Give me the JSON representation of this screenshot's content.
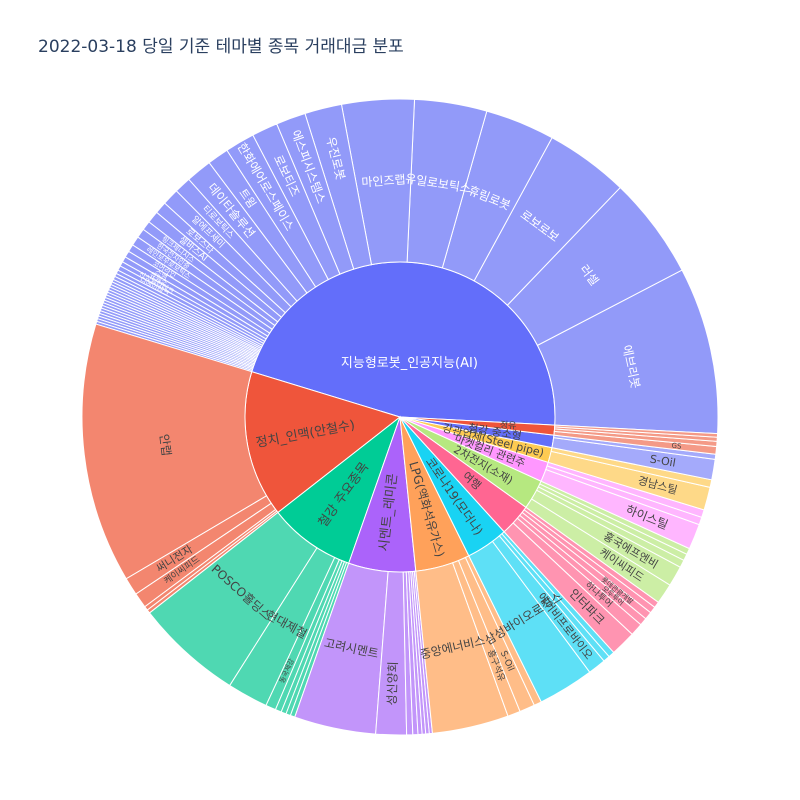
{
  "chart_data": {
    "type": "sunburst",
    "title": "2022-03-18 당일 기준 테마별 종목 거래대금 분포",
    "themes": [
      {
        "name": "지능형로봇_인공지능(AI)",
        "color": "#636efa",
        "child_color": "#929af9",
        "value": 178,
        "children": [
          {
            "name": "에브리봇",
            "value": 18
          },
          {
            "name": "러셀",
            "value": 11
          },
          {
            "name": "로보로보",
            "value": 9
          },
          {
            "name": "휴림로봇",
            "value": 7.5
          },
          {
            "name": "유일로보틱스",
            "value": 7.8
          },
          {
            "name": "마인즈랩",
            "value": 7.8
          },
          {
            "name": "우진로봇",
            "value": 4
          },
          {
            "name": "에스피시스템스",
            "value": 3.2
          },
          {
            "name": "로보티즈",
            "value": 2.8
          },
          {
            "name": "한화에어로스페이스",
            "value": 3.2
          },
          {
            "name": "트윔",
            "value": 2.3
          },
          {
            "name": "데이타솔루션",
            "value": 2.8
          },
          {
            "name": "티로보틱스",
            "value": 1.8
          },
          {
            "name": "알에프세미",
            "value": 1.8
          },
          {
            "name": "로보스타",
            "value": 1.3
          },
          {
            "name": "셀바스AI",
            "value": 1.3
          },
          {
            "name": "링크제니시스",
            "value": 1
          },
          {
            "name": "한국전자인증",
            "value": 1
          },
          {
            "name": "레인보우로보틱스",
            "value": 1
          },
          {
            "name": "코어라인",
            "value": 0.8
          },
          {
            "name": "스맥",
            "value": 0.7
          },
          {
            "name": "큐렉소",
            "value": 0.6
          },
          {
            "name": "신성델타테크",
            "value": 0.5
          },
          {
            "name": "디에이테크",
            "value": 0.5
          },
          {
            "name": "코난테크",
            "value": 0.4
          },
          {
            "name": "",
            "value": 0.35
          },
          {
            "name": "",
            "value": 0.35
          },
          {
            "name": "",
            "value": 0.3
          },
          {
            "name": "",
            "value": 0.3
          },
          {
            "name": "",
            "value": 0.3
          },
          {
            "name": "",
            "value": 0.3
          },
          {
            "name": "",
            "value": 0.3
          },
          {
            "name": "",
            "value": 0.3
          },
          {
            "name": "",
            "value": 0.3
          },
          {
            "name": "",
            "value": 0.3
          },
          {
            "name": "",
            "value": 0.3
          },
          {
            "name": "",
            "value": 0.3
          },
          {
            "name": "",
            "value": 0.3
          },
          {
            "name": "",
            "value": 0.3
          },
          {
            "name": "",
            "value": 0.3
          },
          {
            "name": "",
            "value": 0.3
          },
          {
            "name": "",
            "value": 0.3
          },
          {
            "name": "",
            "value": 0.3
          },
          {
            "name": "",
            "value": 0.3
          }
        ]
      },
      {
        "name": "정치_인맥(안철수)",
        "color": "#ef553b",
        "child_color": "#f3866f",
        "value": 59,
        "children": [
          {
            "name": "안랩",
            "value": 51
          },
          {
            "name": "써니전자",
            "value": 3.5
          },
          {
            "name": "케이씨피드",
            "value": 3
          },
          {
            "name": "",
            "value": 0.8
          },
          {
            "name": "",
            "value": 0.7
          }
        ]
      },
      {
        "name": "철강 주요종목",
        "color": "#00cc96",
        "child_color": "#4fd8b2",
        "value": 35,
        "children": [
          {
            "name": "POSCO홀딩스",
            "value": 21
          },
          {
            "name": "현대제철",
            "value": 8
          },
          {
            "name": "동국제강",
            "value": 2
          },
          {
            "name": "",
            "value": 1.2
          },
          {
            "name": "",
            "value": 1
          },
          {
            "name": "",
            "value": 0.9
          },
          {
            "name": "",
            "value": 0.9
          }
        ]
      },
      {
        "name": "시멘트_레미콘",
        "color": "#ab63fa",
        "child_color": "#c295fa",
        "value": 27,
        "children": [
          {
            "name": "고려시멘트",
            "value": 16
          },
          {
            "name": "성신양회",
            "value": 6
          },
          {
            "name": "",
            "value": 1.2
          },
          {
            "name": "",
            "value": 1
          },
          {
            "name": "",
            "value": 0.8
          },
          {
            "name": "",
            "value": 0.7
          },
          {
            "name": "",
            "value": 0.7
          },
          {
            "name": "",
            "value": 0.6
          }
        ]
      },
      {
        "name": "LPG(액화석유가스)",
        "color": "#ffa15a",
        "child_color": "#ffbd88",
        "value": 22,
        "children": [
          {
            "name": "중앙에너비스",
            "value": 15
          },
          {
            "name": "흥구석유",
            "value": 2.5
          },
          {
            "name": "S-Oil",
            "value": 3
          },
          {
            "name": "",
            "value": 1.5
          }
        ]
      },
      {
        "name": "코로나19(모더나)",
        "color": "#19d3f3",
        "child_color": "#5ee0f6",
        "value": 17,
        "children": [
          {
            "name": "삼성바이오로직스",
            "value": 11
          },
          {
            "name": "에이비프로바이오",
            "value": 3.5
          },
          {
            "name": "",
            "value": 1.3
          },
          {
            "name": "",
            "value": 1.2
          }
        ]
      },
      {
        "name": "여행",
        "color": "#ff6692",
        "child_color": "#ff94b1",
        "value": 13,
        "children": [
          {
            "name": "인터파크",
            "value": 5
          },
          {
            "name": "하나투어",
            "value": 2.5
          },
          {
            "name": "모두투어",
            "value": 1.5
          },
          {
            "name": "롯데관광개발",
            "value": 1.5
          },
          {
            "name": "",
            "value": 1.3
          },
          {
            "name": "",
            "value": 1.2
          }
        ]
      },
      {
        "name": "2차전지(소재)",
        "color": "#b6e880",
        "child_color": "#cceea5",
        "value": 12,
        "children": [
          {
            "name": "케이씨피드",
            "value": 4
          },
          {
            "name": "홍국에프엔비",
            "value": 4
          },
          {
            "name": "",
            "value": 1.5
          },
          {
            "name": "",
            "value": 1.3
          },
          {
            "name": "",
            "value": 1.2
          }
        ]
      },
      {
        "name": "마켓컬리 관련주",
        "color": "#ff97ff",
        "child_color": "#ffb6ff",
        "value": 8,
        "children": [
          {
            "name": "하이스틸",
            "value": 5
          },
          {
            "name": "",
            "value": 1.5
          },
          {
            "name": "",
            "value": 1.5
          }
        ]
      },
      {
        "name": "강관업체(Steel pipe)",
        "color": "#fecb52",
        "child_color": "#fed988",
        "value": 6,
        "children": [
          {
            "name": "경남스틸",
            "value": 4.5
          },
          {
            "name": "",
            "value": 1.5
          }
        ]
      },
      {
        "name": "철강 중소형",
        "color": "#636efa",
        "child_color": "#a4aafb",
        "value": 5,
        "children": [
          {
            "name": "S-Oil",
            "value": 4
          },
          {
            "name": "",
            "value": 1
          }
        ]
      },
      {
        "name": "정유",
        "color": "#ef553b",
        "child_color": "#f49a87",
        "value": 4,
        "children": [
          {
            "name": "GS",
            "value": 1.5
          },
          {
            "name": "",
            "value": 1
          },
          {
            "name": "",
            "value": 0.8
          },
          {
            "name": "",
            "value": 0.7
          }
        ]
      }
    ]
  }
}
